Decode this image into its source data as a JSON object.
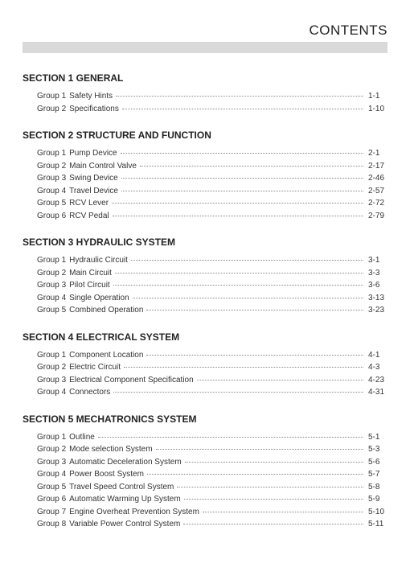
{
  "header": {
    "title": "CONTENTS"
  },
  "sections": [
    {
      "title": "SECTION 1  GENERAL",
      "groups": [
        {
          "n": 1,
          "name": "Safety Hints",
          "page": "1-1"
        },
        {
          "n": 2,
          "name": "Specifications",
          "page": "1-10"
        }
      ]
    },
    {
      "title": "SECTION 2  STRUCTURE AND FUNCTION",
      "groups": [
        {
          "n": 1,
          "name": "Pump Device",
          "page": "2-1"
        },
        {
          "n": 2,
          "name": "Main Control Valve",
          "page": "2-17"
        },
        {
          "n": 3,
          "name": "Swing Device",
          "page": "2-46"
        },
        {
          "n": 4,
          "name": "Travel Device",
          "page": "2-57"
        },
        {
          "n": 5,
          "name": "RCV Lever",
          "page": "2-72"
        },
        {
          "n": 6,
          "name": "RCV Pedal",
          "page": "2-79"
        }
      ]
    },
    {
      "title": "SECTION 3  HYDRAULIC SYSTEM",
      "groups": [
        {
          "n": 1,
          "name": "Hydraulic Circuit",
          "page": "3-1"
        },
        {
          "n": 2,
          "name": "Main Circuit",
          "page": "3-3"
        },
        {
          "n": 3,
          "name": "Pilot Circuit",
          "page": "3-6"
        },
        {
          "n": 4,
          "name": "Single Operation",
          "page": "3-13"
        },
        {
          "n": 5,
          "name": "Combined Operation",
          "page": "3-23"
        }
      ]
    },
    {
      "title": "SECTION 4  ELECTRICAL SYSTEM",
      "groups": [
        {
          "n": 1,
          "name": "Component Location",
          "page": "4-1"
        },
        {
          "n": 2,
          "name": "Electric Circuit",
          "page": "4-3"
        },
        {
          "n": 3,
          "name": "Electrical Component Specification",
          "page": "4-23"
        },
        {
          "n": 4,
          "name": "Connectors",
          "page": "4-31"
        }
      ]
    },
    {
      "title": "SECTION 5  MECHATRONICS SYSTEM",
      "groups": [
        {
          "n": 1,
          "name": "Outline",
          "page": "5-1"
        },
        {
          "n": 2,
          "name": "Mode selection System",
          "page": "5-3"
        },
        {
          "n": 3,
          "name": "Automatic Deceleration System",
          "page": "5-6"
        },
        {
          "n": 4,
          "name": "Power Boost System",
          "page": "5-7"
        },
        {
          "n": 5,
          "name": "Travel Speed Control System",
          "page": "5-8"
        },
        {
          "n": 6,
          "name": "Automatic Warming Up System",
          "page": "5-9"
        },
        {
          "n": 7,
          "name": "Engine Overheat Prevention System",
          "page": "5-10"
        },
        {
          "n": 8,
          "name": "Variable Power Control System",
          "page": "5-11"
        }
      ]
    }
  ],
  "labels": {
    "group_prefix": "Group"
  },
  "style": {
    "bg": "#ffffff",
    "grey_bar": "#d9d9d9",
    "text": "#222222",
    "leader": "#888888",
    "title_fontsize": 17,
    "section_fontsize": 12,
    "row_fontsize": 10
  }
}
